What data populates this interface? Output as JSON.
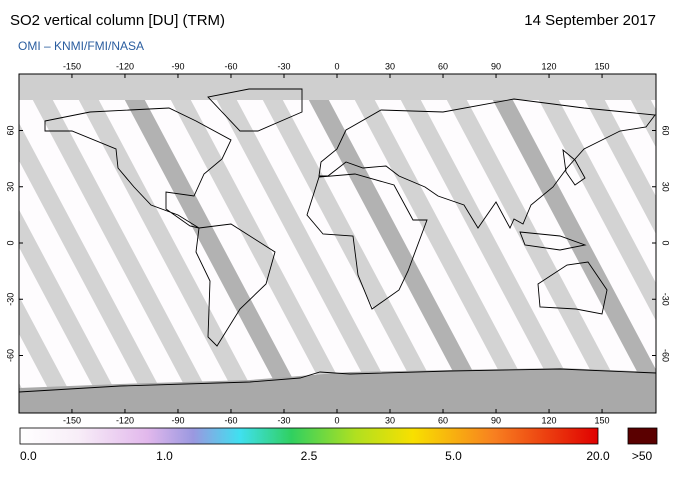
{
  "header": {
    "title": "SO2 vertical column [DU] (TRM)",
    "date": "14 September 2017",
    "credit": "OMI  –  KNMI/FMI/NASA"
  },
  "map": {
    "lon_ticks": [
      -150,
      -120,
      -90,
      -60,
      -30,
      0,
      30,
      60,
      90,
      120,
      150
    ],
    "lat_ticks": [
      60,
      30,
      0,
      -30,
      -60
    ]
  },
  "colorbar": {
    "labels": [
      "0.0",
      "1.0",
      "2.5",
      "5.0",
      "20.0",
      ">50"
    ]
  }
}
